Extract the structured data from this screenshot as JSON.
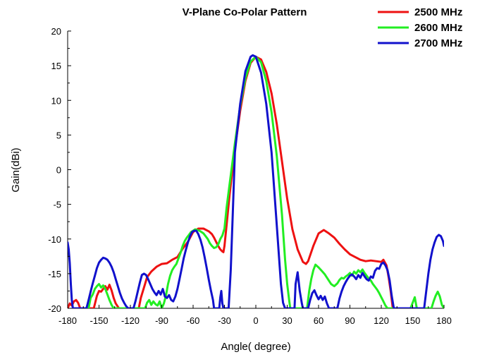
{
  "chart_data": {
    "type": "line",
    "title": "V-Plane Co-Polar Pattern",
    "xlabel": "Angle( degree)",
    "ylabel": "Gain(dBi)",
    "xlim": [
      -180,
      180
    ],
    "ylim": [
      -20,
      20
    ],
    "xticks": [
      -180,
      -150,
      -120,
      -90,
      -60,
      -30,
      0,
      30,
      60,
      90,
      120,
      150,
      180
    ],
    "yticks": [
      -20,
      -15,
      -10,
      -5,
      0,
      5,
      10,
      15,
      20
    ],
    "grid": false,
    "legend_position": "top-right",
    "series": [
      {
        "name": "2500 MHz",
        "color": "#ee1111",
        "x": [
          -180,
          -178,
          -176,
          -174,
          -172,
          -170,
          -168,
          -155,
          -152,
          -150,
          -148,
          -146,
          -144,
          -142,
          -140,
          -138,
          -136,
          -134,
          -131,
          -112,
          -110,
          -108,
          -106,
          -104,
          -100,
          -95,
          -90,
          -85,
          -80,
          -75,
          -70,
          -65,
          -60,
          -55,
          -50,
          -45,
          -42,
          -40,
          -38,
          -36,
          -34,
          -32,
          -31,
          -30,
          -28,
          -25,
          -20,
          -15,
          -10,
          -5,
          0,
          5,
          10,
          15,
          20,
          25,
          30,
          35,
          40,
          45,
          48,
          50,
          55,
          60,
          65,
          70,
          75,
          80,
          85,
          90,
          95,
          100,
          105,
          110,
          115,
          120,
          122,
          125,
          127,
          129,
          131
        ],
        "y": [
          -20,
          -19.3,
          -19.6,
          -19.0,
          -18.8,
          -19.2,
          -20,
          -20,
          -18.2,
          -17.5,
          -17.6,
          -17.2,
          -16.8,
          -17.3,
          -16.6,
          -17.4,
          -18.5,
          -19.3,
          -20,
          -20,
          -18.5,
          -17.5,
          -16.5,
          -15.5,
          -14.7,
          -14.0,
          -13.6,
          -13.5,
          -13.0,
          -12.6,
          -11.4,
          -10.4,
          -9.0,
          -8.5,
          -8.5,
          -8.9,
          -9.3,
          -9.8,
          -10.4,
          -11.0,
          -11.5,
          -11.8,
          -11.9,
          -11.0,
          -8.0,
          -3.5,
          3.0,
          8.5,
          12.8,
          15.4,
          16.3,
          15.9,
          14.1,
          11.0,
          6.6,
          1.2,
          -4.2,
          -8.6,
          -11.5,
          -13.3,
          -13.6,
          -13.2,
          -11.0,
          -9.2,
          -8.7,
          -9.2,
          -9.8,
          -10.7,
          -11.5,
          -12.2,
          -12.6,
          -13.0,
          -13.2,
          -13.1,
          -13.2,
          -13.3,
          -13.0,
          -13.8,
          -15.5,
          -17.5,
          -20
        ]
      },
      {
        "name": "2600 MHz",
        "color": "#22ee22",
        "x": [
          -160,
          -158,
          -156,
          -154,
          -152,
          -150,
          -148,
          -146,
          -144,
          -142,
          -140,
          -138,
          -136,
          -106,
          -104,
          -102,
          -100,
          -98,
          -96,
          -94,
          -92,
          -90,
          -88,
          -86,
          -84,
          -82,
          -80,
          -78,
          -76,
          -74,
          -72,
          -70,
          -68,
          -66,
          -64,
          -62,
          -60,
          -58,
          -56,
          -54,
          -52,
          -50,
          -48,
          -46,
          -44,
          -42,
          -40,
          -38,
          -36,
          -34,
          -32,
          -30,
          -28,
          -25,
          -20,
          -15,
          -10,
          -5,
          0,
          5,
          10,
          15,
          20,
          25,
          28,
          30,
          32,
          33,
          49,
          51,
          53,
          55,
          57,
          60,
          63,
          66,
          69,
          72,
          75,
          78,
          80,
          82,
          84,
          86,
          88,
          90,
          92,
          94,
          96,
          98,
          100,
          102,
          104,
          106,
          108,
          110,
          112,
          114,
          116,
          118,
          120,
          122,
          124,
          126,
          128,
          148,
          150,
          152,
          154,
          168,
          170,
          172,
          174,
          176,
          178,
          180
        ],
        "y": [
          -20,
          -18.5,
          -18.0,
          -17.2,
          -16.8,
          -16.5,
          -17.0,
          -16.7,
          -17.2,
          -18.0,
          -18.8,
          -19.5,
          -20,
          -20,
          -19.2,
          -18.8,
          -19.5,
          -19.0,
          -19.4,
          -19.6,
          -19.0,
          -20,
          -19.3,
          -18.2,
          -16.5,
          -15.3,
          -14.5,
          -14.0,
          -13.6,
          -12.8,
          -12.0,
          -11.0,
          -10.3,
          -9.8,
          -9.4,
          -9.0,
          -8.8,
          -8.6,
          -8.7,
          -8.8,
          -9.0,
          -9.2,
          -9.6,
          -10.0,
          -10.6,
          -11.0,
          -11.3,
          -11.2,
          -10.8,
          -10.0,
          -9.5,
          -8.5,
          -5.5,
          -2.0,
          3.8,
          9.2,
          13.2,
          15.6,
          16.3,
          15.5,
          12.8,
          8.3,
          2.0,
          -6.5,
          -13.0,
          -16.5,
          -19.0,
          -20,
          -20,
          -17.5,
          -15.8,
          -14.5,
          -13.7,
          -14.1,
          -14.6,
          -15.1,
          -15.8,
          -16.5,
          -16.8,
          -16.4,
          -15.9,
          -15.6,
          -15.7,
          -15.4,
          -15.2,
          -14.9,
          -15.3,
          -14.7,
          -15.0,
          -14.5,
          -14.8,
          -14.4,
          -14.9,
          -15.3,
          -15.7,
          -16.0,
          -16.5,
          -16.9,
          -17.3,
          -17.8,
          -18.4,
          -19.0,
          -19.6,
          -20,
          -20,
          -20,
          -19.2,
          -18.4,
          -20,
          -20,
          -19.0,
          -18.2,
          -17.6,
          -18.3,
          -19.5,
          -20
        ]
      },
      {
        "name": "2700 MHz",
        "color": "#1111cc",
        "x": [
          -180,
          -179,
          -178,
          -177,
          -176,
          -175,
          -162,
          -160,
          -158,
          -156,
          -154,
          -152,
          -150,
          -148,
          -146,
          -144,
          -142,
          -140,
          -138,
          -136,
          -134,
          -132,
          -130,
          -128,
          -126,
          -124,
          -122,
          -117,
          -115,
          -113,
          -111,
          -109,
          -107,
          -105,
          -103,
          -101,
          -99,
          -97,
          -95,
          -93,
          -91,
          -89,
          -87,
          -85,
          -83,
          -81,
          -79,
          -77,
          -75,
          -73,
          -71,
          -69,
          -67,
          -65,
          -63,
          -61,
          -59,
          -57,
          -55,
          -53,
          -51,
          -49,
          -47,
          -45,
          -43,
          -41,
          -40,
          -35,
          -34,
          -33,
          -32,
          -31,
          -30,
          -26,
          -24,
          -22,
          -20,
          -15,
          -10,
          -5,
          -3,
          0,
          5,
          10,
          15,
          20,
          24,
          26,
          28,
          37,
          38,
          40,
          42,
          44,
          45,
          50,
          52,
          54,
          56,
          58,
          60,
          62,
          64,
          66,
          68,
          70,
          78,
          80,
          82,
          84,
          86,
          88,
          90,
          92,
          94,
          96,
          98,
          100,
          102,
          104,
          106,
          108,
          110,
          112,
          114,
          116,
          118,
          120,
          122,
          124,
          126,
          128,
          130,
          132,
          161,
          163,
          165,
          167,
          169,
          171,
          173,
          175,
          177,
          179,
          180
        ],
        "y": [
          -10.5,
          -11.5,
          -13.5,
          -16.5,
          -18.8,
          -20,
          -20,
          -18.8,
          -17.6,
          -16.4,
          -15.3,
          -14.2,
          -13.4,
          -13.0,
          -12.7,
          -12.8,
          -13.0,
          -13.4,
          -14.0,
          -14.8,
          -15.8,
          -16.8,
          -17.8,
          -18.6,
          -19.2,
          -19.7,
          -20,
          -20,
          -18.9,
          -17.6,
          -16.3,
          -15.2,
          -15.0,
          -15.2,
          -15.8,
          -16.5,
          -17.2,
          -17.7,
          -18.1,
          -17.5,
          -18.0,
          -17.2,
          -18.3,
          -18.5,
          -18.1,
          -18.8,
          -19.0,
          -18.3,
          -17.2,
          -15.8,
          -14.3,
          -12.8,
          -11.6,
          -10.5,
          -9.6,
          -9.0,
          -8.8,
          -8.8,
          -9.3,
          -10.1,
          -11.2,
          -12.6,
          -14.2,
          -15.9,
          -17.4,
          -18.8,
          -20,
          -20,
          -18.4,
          -17.5,
          -19.3,
          -20,
          -20,
          -20,
          -14.5,
          -6.0,
          2.5,
          9.5,
          14.2,
          16.3,
          16.5,
          16.3,
          14.0,
          9.5,
          2.5,
          -8.0,
          -16.5,
          -19.2,
          -20,
          -20,
          -16.5,
          -14.8,
          -17.5,
          -19.3,
          -20,
          -20,
          -18.8,
          -17.8,
          -17.4,
          -18.1,
          -18.7,
          -18.2,
          -18.8,
          -18.3,
          -19.3,
          -20,
          -20,
          -18.6,
          -17.6,
          -16.8,
          -16.2,
          -15.7,
          -15.3,
          -15.1,
          -15.4,
          -15.8,
          -15.2,
          -15.6,
          -14.9,
          -15.4,
          -15.8,
          -16.0,
          -15.4,
          -15.6,
          -14.6,
          -14.2,
          -14.3,
          -13.6,
          -13.4,
          -13.8,
          -14.5,
          -16.0,
          -18.2,
          -20,
          -20,
          -17.5,
          -15.0,
          -13.0,
          -11.5,
          -10.5,
          -9.7,
          -9.4,
          -9.6,
          -10.3,
          -11.0
        ]
      }
    ]
  }
}
